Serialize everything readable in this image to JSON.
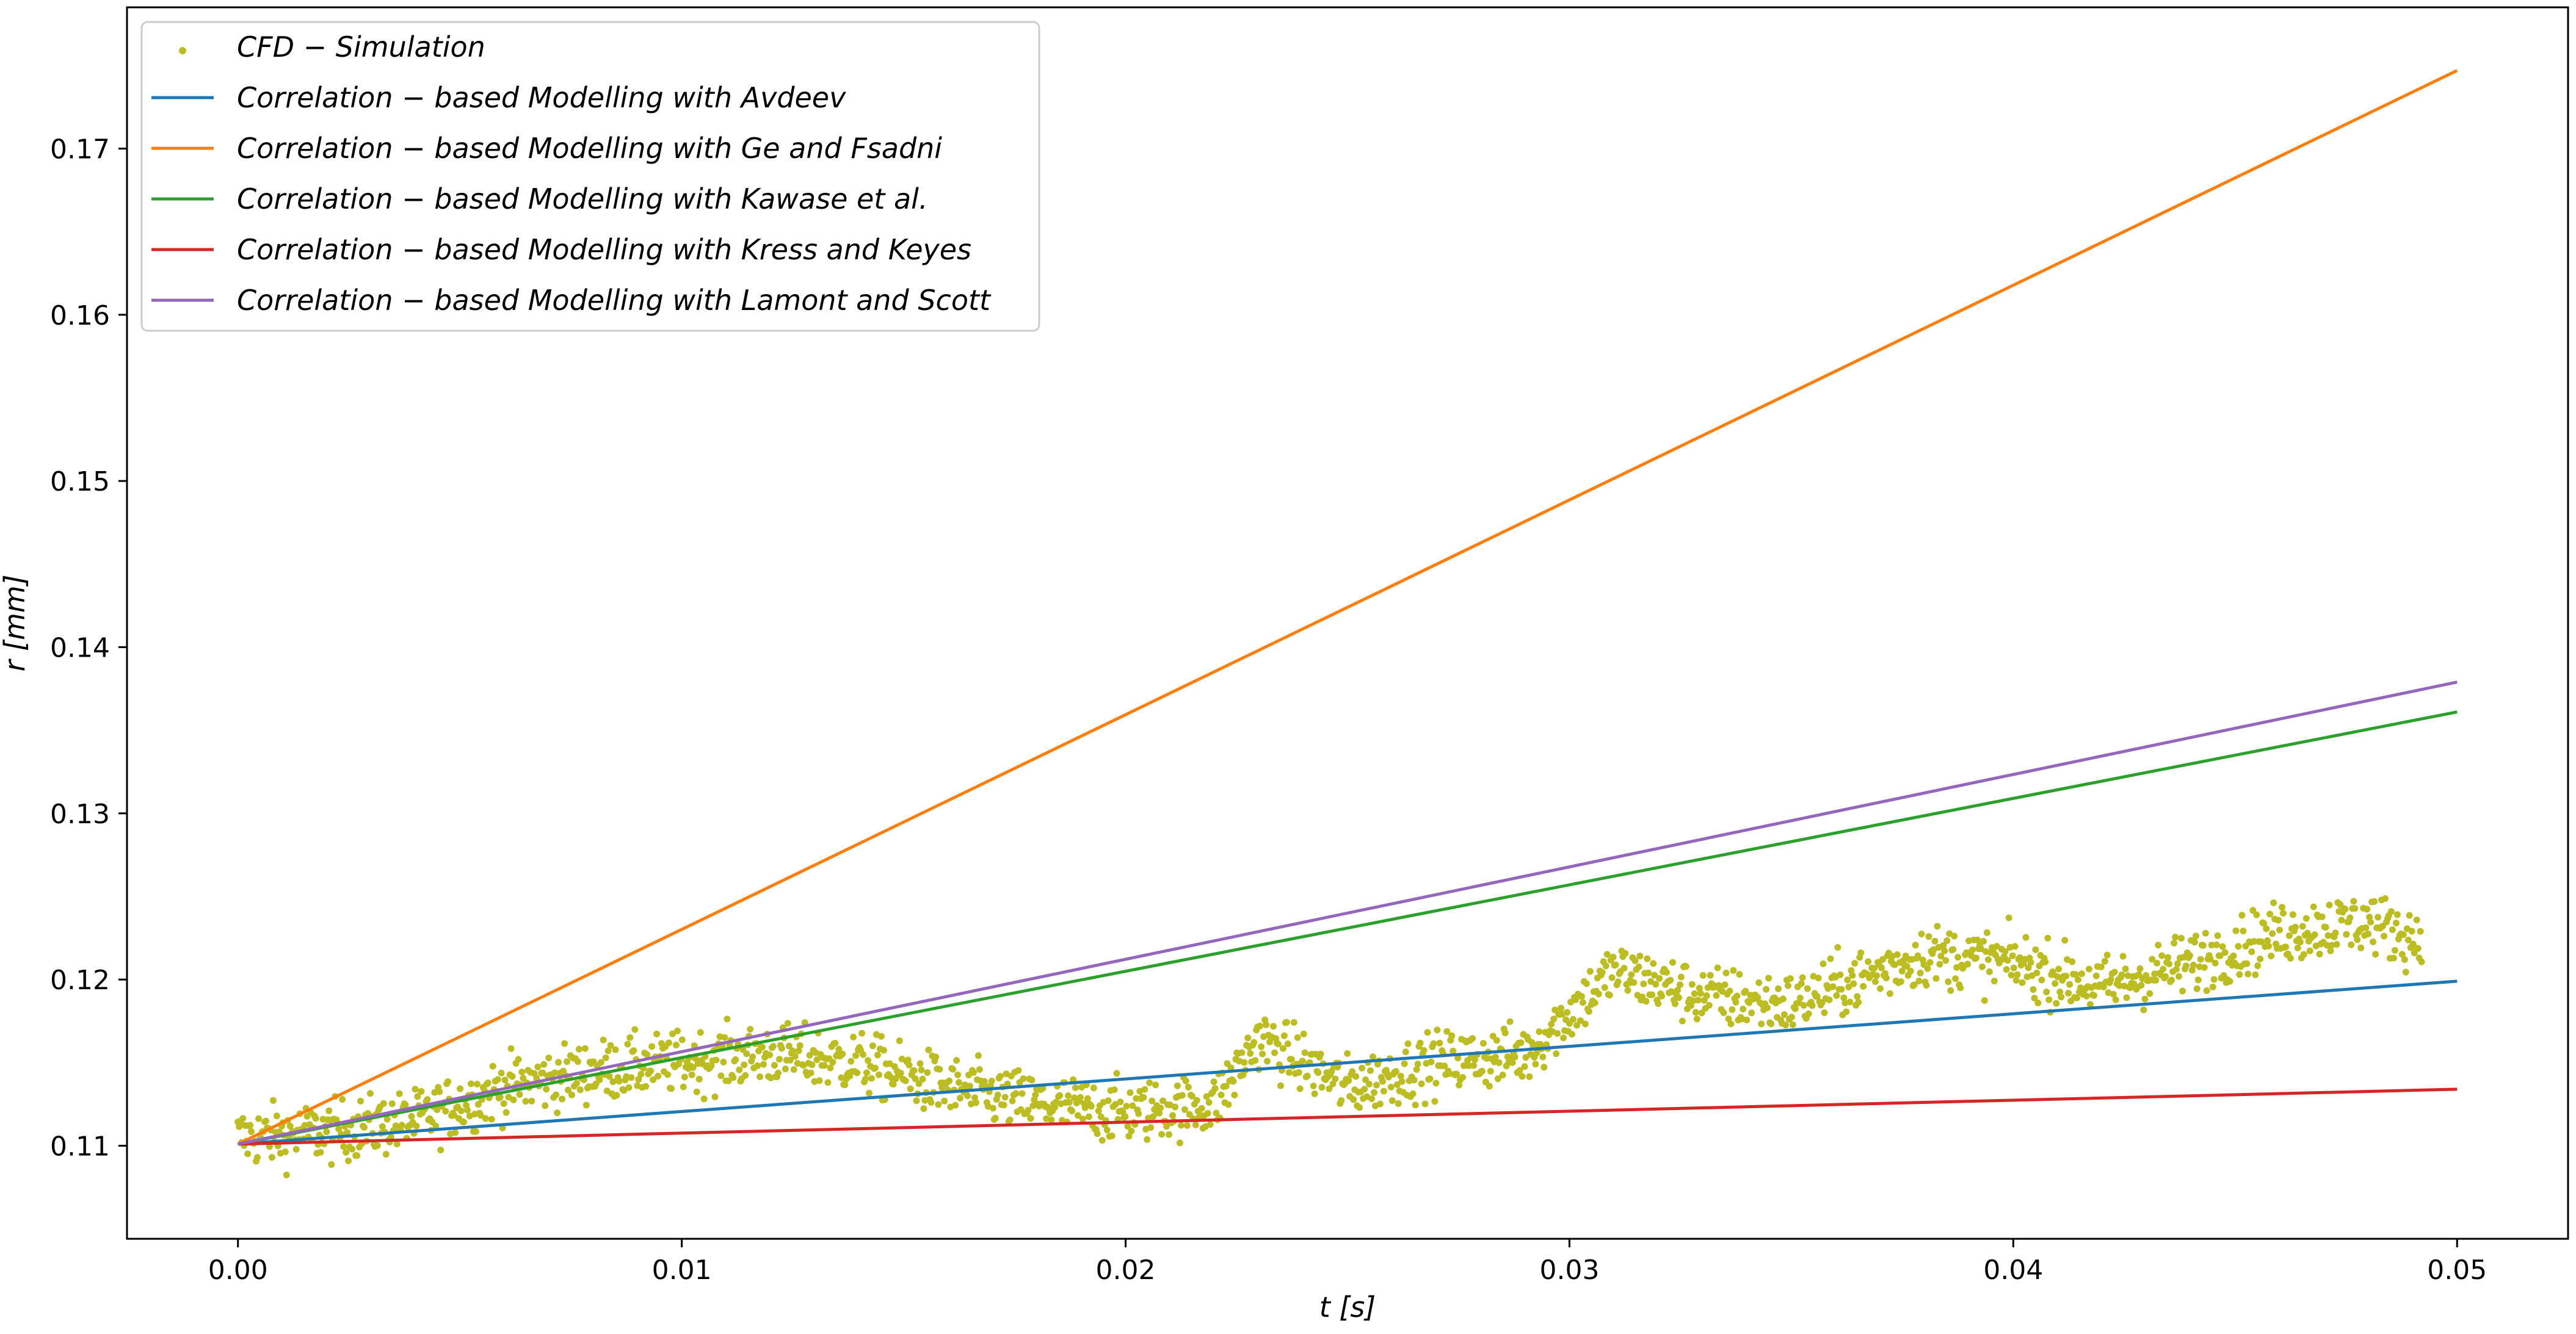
{
  "chart_data": {
    "type": "line",
    "xlabel": "t [s]",
    "ylabel": "r [mm]",
    "xlim": [
      -0.0025,
      0.0525
    ],
    "ylim": [
      0.1044,
      0.1785
    ],
    "xticks": [
      0.0,
      0.01,
      0.02,
      0.03,
      0.04,
      0.05
    ],
    "xtick_labels": [
      "0.00",
      "0.01",
      "0.02",
      "0.03",
      "0.04",
      "0.05"
    ],
    "yticks": [
      0.11,
      0.12,
      0.13,
      0.14,
      0.15,
      0.16,
      0.17
    ],
    "ytick_labels": [
      "0.11",
      "0.12",
      "0.13",
      "0.14",
      "0.15",
      "0.16",
      "0.17"
    ],
    "grid": false,
    "legend_position": "upper-left",
    "scatter": {
      "name": "CFD − Simulation",
      "color": "#bcbd22",
      "trend_x": [
        0.0,
        0.002,
        0.004,
        0.006,
        0.008,
        0.01,
        0.012,
        0.014,
        0.016,
        0.018,
        0.02,
        0.022,
        0.023,
        0.025,
        0.027,
        0.029,
        0.031,
        0.033,
        0.035,
        0.038,
        0.04,
        0.042,
        0.044,
        0.046,
        0.048,
        0.049
      ],
      "trend_y": [
        0.1105,
        0.1108,
        0.1115,
        0.1135,
        0.1145,
        0.115,
        0.1155,
        0.115,
        0.1135,
        0.1125,
        0.112,
        0.1125,
        0.1165,
        0.1135,
        0.115,
        0.1155,
        0.1205,
        0.119,
        0.1185,
        0.1215,
        0.121,
        0.1195,
        0.121,
        0.1228,
        0.1235,
        0.1225
      ],
      "spread": 0.0028,
      "x_start": 0.0,
      "x_end": 0.0492,
      "point_count": 1800
    },
    "series": [
      {
        "name": "Correlation − based Modelling with Avdeev",
        "color": "#1f77b4",
        "x": [
          0.0,
          0.05
        ],
        "y": [
          0.1101,
          0.1199
        ]
      },
      {
        "name": "Correlation − based Modelling with Ge and Fsadni",
        "color": "#ff7f0e",
        "x": [
          0.0,
          0.05
        ],
        "y": [
          0.1101,
          0.1747
        ]
      },
      {
        "name": "Correlation − based Modelling with Kawase et al.",
        "color": "#2ca02c",
        "x": [
          0.0,
          0.05
        ],
        "y": [
          0.1101,
          0.1361
        ]
      },
      {
        "name": "Correlation − based Modelling with Kress and Keyes",
        "color": "#d62728",
        "x": [
          0.0,
          0.05
        ],
        "y": [
          0.1101,
          0.1134
        ]
      },
      {
        "name": "Correlation − based Modelling with Lamont and Scott",
        "color": "#9467bd",
        "x": [
          0.0,
          0.05
        ],
        "y": [
          0.1101,
          0.1379
        ]
      }
    ]
  }
}
